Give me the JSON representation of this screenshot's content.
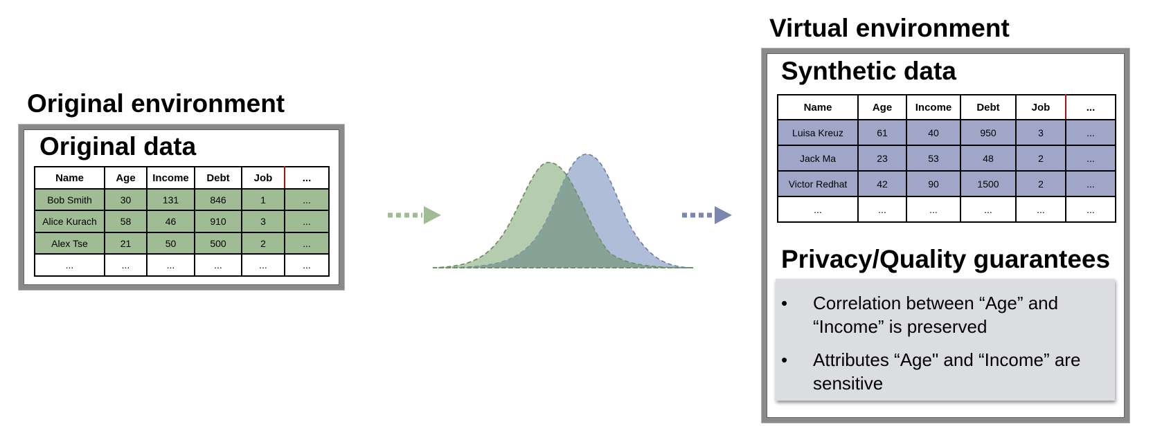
{
  "original": {
    "env_title": "Original environment",
    "data_title": "Original data",
    "columns": [
      "Name",
      "Age",
      "Income",
      "Debt",
      "Job",
      "..."
    ],
    "rows": [
      [
        "Bob Smith",
        "30",
        "131",
        "846",
        "1",
        "..."
      ],
      [
        "Alice Kurach",
        "58",
        "46",
        "910",
        "3",
        "..."
      ],
      [
        "Alex Tse",
        "21",
        "50",
        "500",
        "2",
        "..."
      ],
      [
        "...",
        "...",
        "...",
        "...",
        "...",
        "..."
      ]
    ],
    "color": "#9fbc95"
  },
  "virtual": {
    "env_title": "Virtual environment",
    "data_title": "Synthetic data",
    "columns": [
      "Name",
      "Age",
      "Income",
      "Debt",
      "Job",
      "..."
    ],
    "rows": [
      [
        "Luisa Kreuz",
        "61",
        "40",
        "950",
        "3",
        "..."
      ],
      [
        "Jack Ma",
        "23",
        "53",
        "48",
        "2",
        "..."
      ],
      [
        "Victor Redhat",
        "42",
        "90",
        "1500",
        "2",
        "..."
      ],
      [
        "...",
        "...",
        "...",
        "...",
        "...",
        "..."
      ]
    ],
    "color": "#a0a6c8"
  },
  "guarantees": {
    "title": "Privacy/Quality guarantees",
    "items": [
      "Correlation between “Age” and “Income” is preserved",
      "Attributes “Age\" and “Income” are sensitive"
    ]
  },
  "colors": {
    "green": "#9fbc95",
    "blue": "#a0a6c8",
    "overlap": "#87a398",
    "box_gray": "#dcdde0"
  },
  "icons": [
    "dotted-arrow-right-icon",
    "distribution-curves-icon"
  ]
}
